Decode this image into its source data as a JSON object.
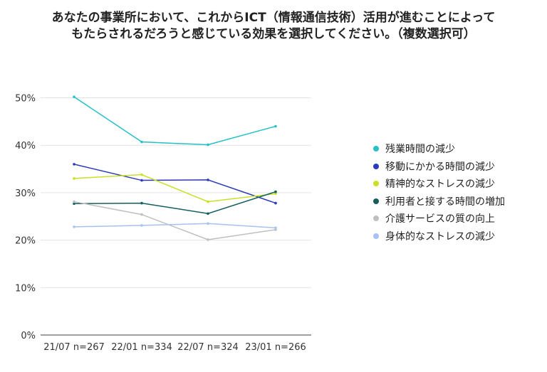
{
  "chart_data": {
    "type": "line",
    "title_lines": [
      "あなたの事業所において、これからICT（情報通信技術）活用が進むことによって",
      "もたらされるだろうと感じている効果を選択してください。（複数選択可）"
    ],
    "categories": [
      "21/07 n=267",
      "22/01 n=334",
      "22/07 n=324",
      "23/01 n=266"
    ],
    "ylim": [
      0,
      55
    ],
    "yticks": [
      {
        "value": 0,
        "label": "0%"
      },
      {
        "value": 10,
        "label": "10%"
      },
      {
        "value": 20,
        "label": "20%"
      },
      {
        "value": 30,
        "label": "30%"
      },
      {
        "value": 40,
        "label": "40%"
      },
      {
        "value": 50,
        "label": "50%"
      }
    ],
    "grid": true,
    "legend_position": "right",
    "series": [
      {
        "name": "残業時間の減少",
        "color": "#26c0c7",
        "values": [
          50.2,
          40.7,
          40.1,
          44.0
        ]
      },
      {
        "name": "移動にかかる時間の減少",
        "color": "#2a3ab8",
        "values": [
          36.0,
          32.6,
          32.7,
          27.8
        ]
      },
      {
        "name": "精神的なストレスの減少",
        "color": "#c9e026",
        "values": [
          33.0,
          33.8,
          28.1,
          29.8
        ]
      },
      {
        "name": "利用者と接する時間の増加",
        "color": "#155e5e",
        "values": [
          27.7,
          27.8,
          25.6,
          30.2
        ]
      },
      {
        "name": "介護サービスの質の向上",
        "color": "#bfbfbf",
        "values": [
          28.1,
          25.4,
          20.1,
          22.2
        ]
      },
      {
        "name": "身体的なストレスの減少",
        "color": "#a6c2ee",
        "values": [
          22.8,
          23.1,
          23.5,
          22.6
        ]
      }
    ]
  }
}
